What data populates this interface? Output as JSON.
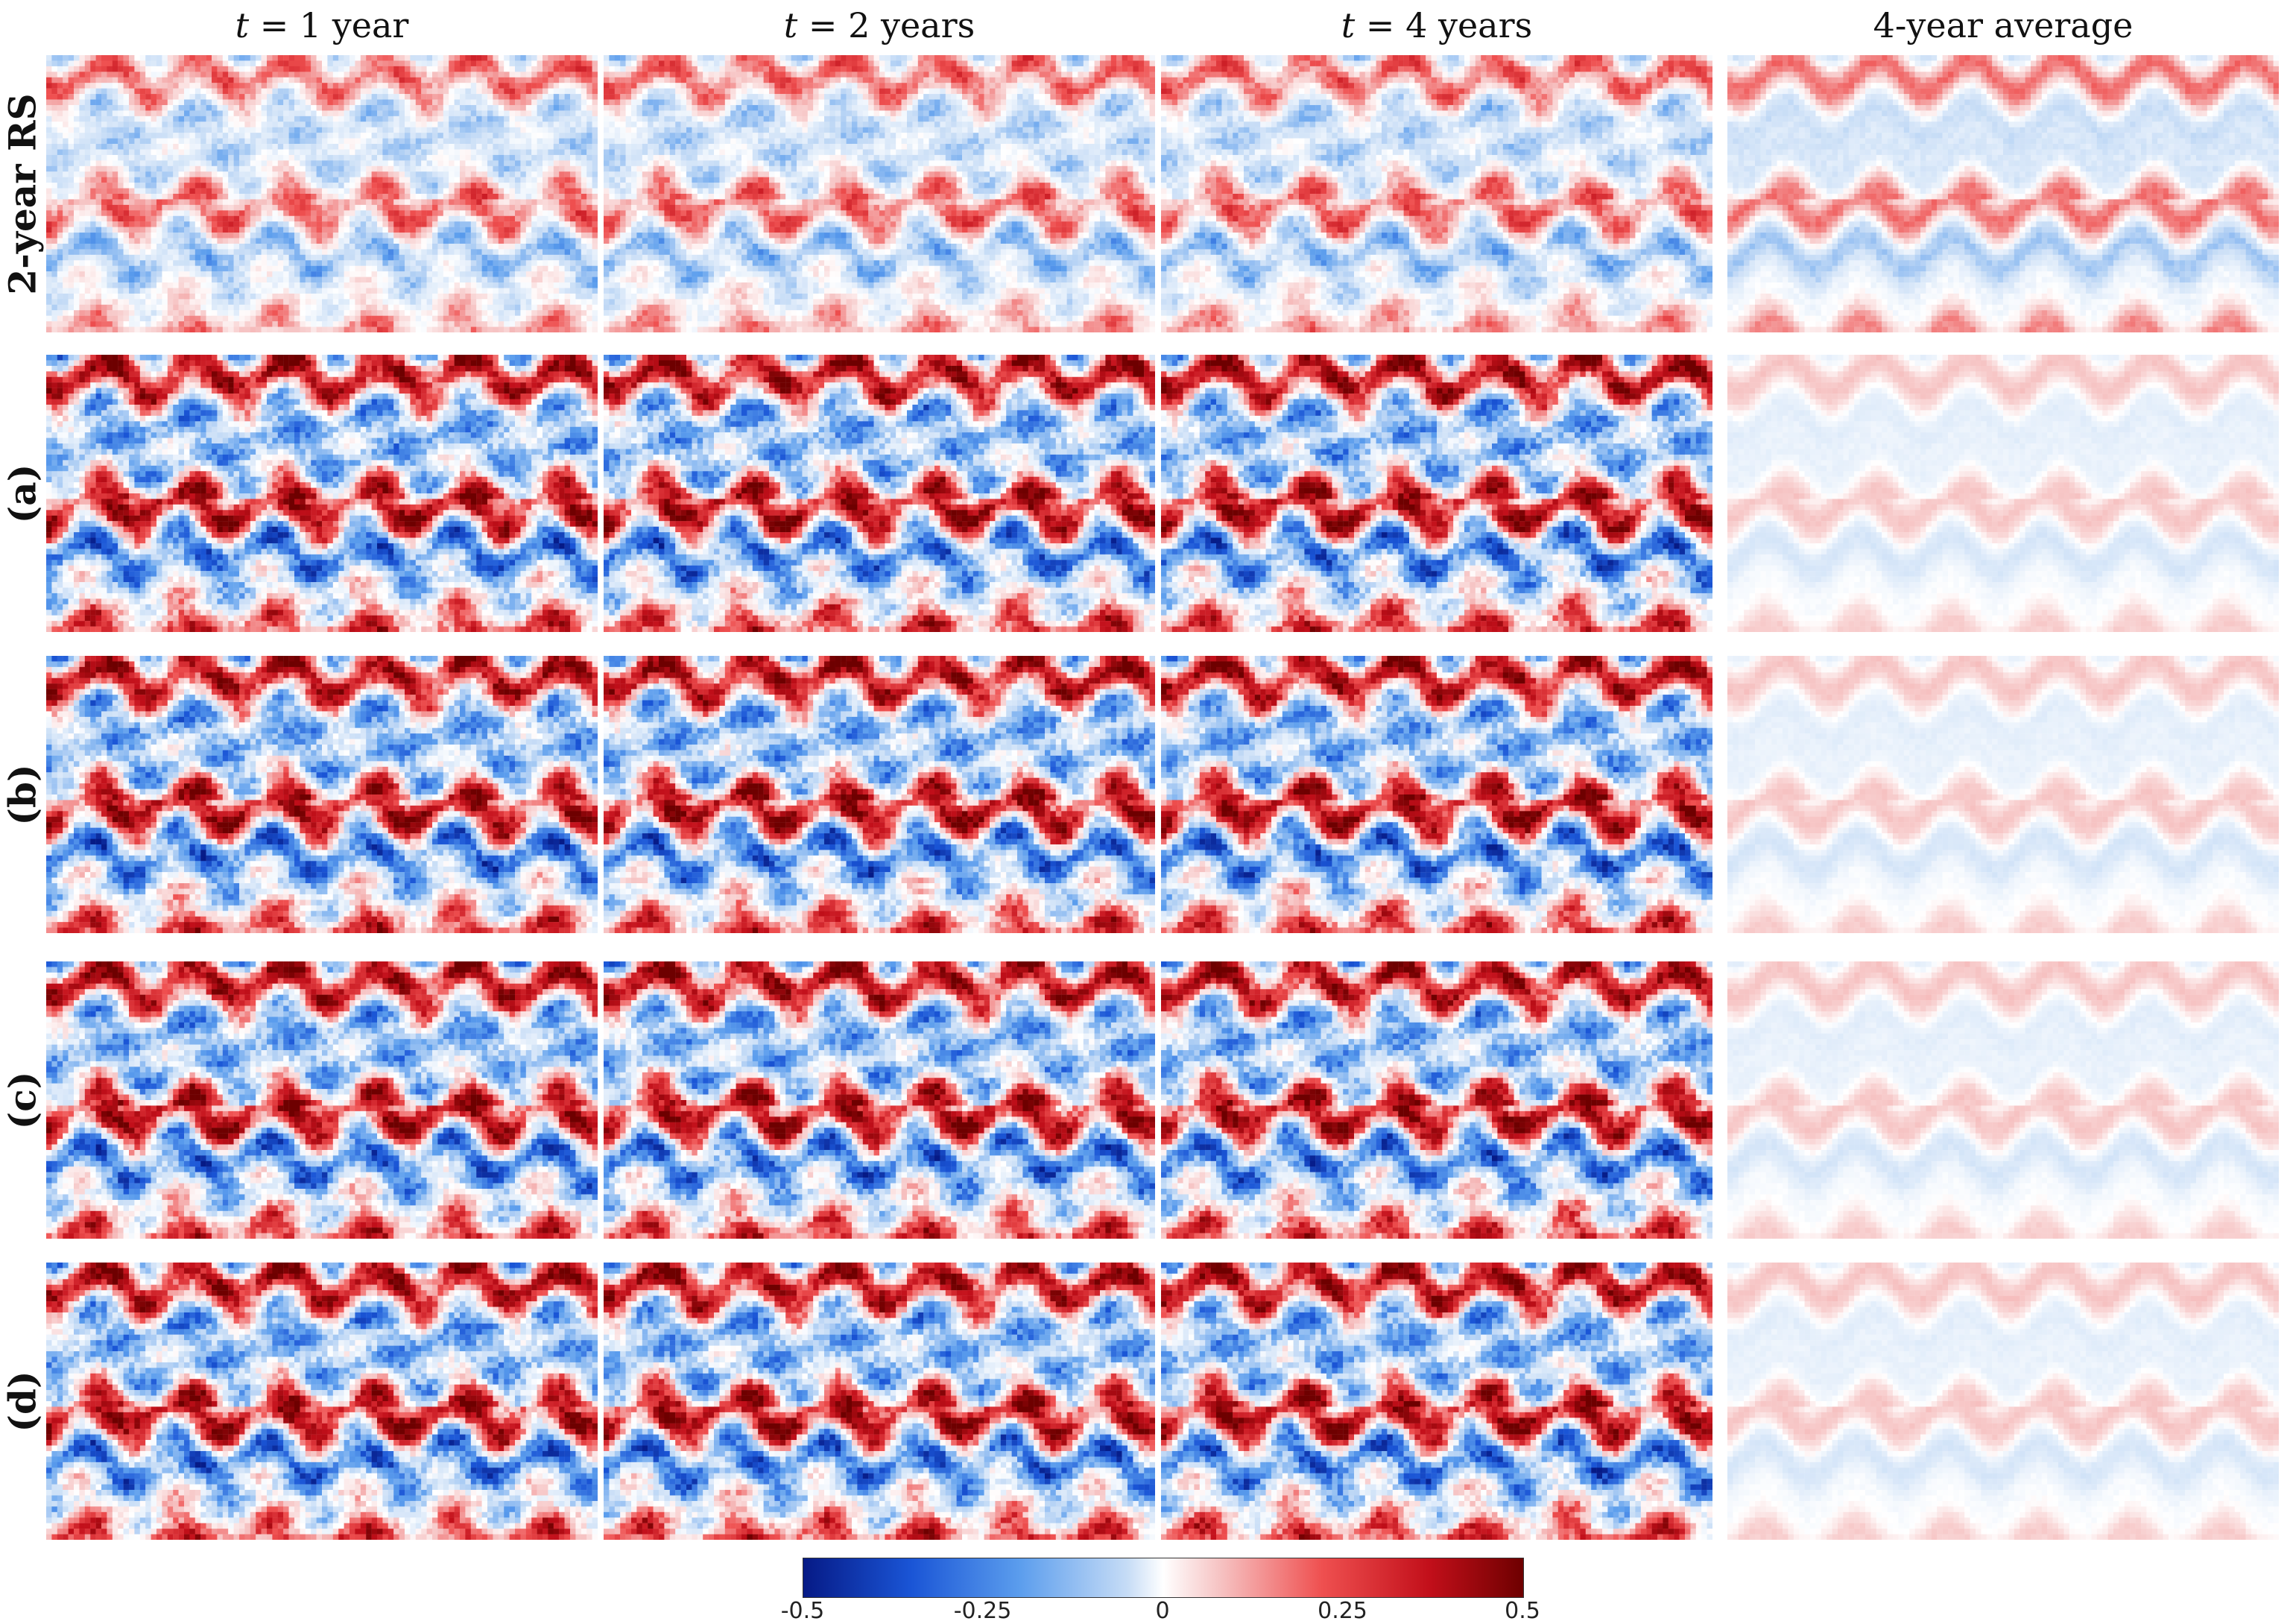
{
  "columns": [
    {
      "italic": "t",
      "rest": " = 1 year"
    },
    {
      "italic": "t",
      "rest": " = 2 years"
    },
    {
      "italic": "t",
      "rest": " = 4 years"
    },
    {
      "italic": "",
      "rest": "4-year average"
    }
  ],
  "rows": [
    "2-year RS",
    "(a)",
    "(b)",
    "(c)",
    "(d)"
  ],
  "colorbar": {
    "ticks": [
      "-0.5",
      "-0.25",
      "0",
      "0.25",
      "0.5"
    ],
    "min": -0.5,
    "max": 0.5,
    "colors": [
      "#061a86",
      "#1a55d6",
      "#5b9ded",
      "#c6dcf6",
      "#ffffff",
      "#f6c2c2",
      "#ef5050",
      "#c20f1a",
      "#6e0000"
    ]
  }
}
